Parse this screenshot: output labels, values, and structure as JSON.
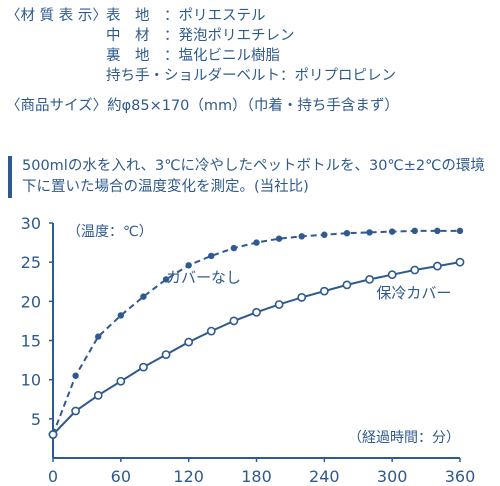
{
  "specs": {
    "label": "〈材 質 表 示〉",
    "rows": [
      {
        "key": "表　地",
        "value": "：ポリエステル"
      },
      {
        "key": "中　材",
        "value": "：発泡ポリエチレン"
      },
      {
        "key": "裏　地",
        "value": "：塩化ビニル樹脂"
      },
      {
        "key": "持ち手・ショルダーベルト",
        "value": "：ポリプロピレン"
      }
    ]
  },
  "size_line": "〈商品サイズ〉約φ85×170（mm）（巾着・持ち手含まず）",
  "test_note": "500mlの水を入れ、3℃に冷やしたペットボトルを、30℃±2℃の環境下に置いた場合の温度変化を測定。(当社比)",
  "colors": {
    "ink": "#2f5a8f"
  },
  "chart_data": {
    "type": "line",
    "ylabel": "（温度：℃）",
    "xlabel": "（経過時間：分）",
    "xlim": [
      0,
      360
    ],
    "ylim": [
      0,
      30
    ],
    "x_ticks": [
      "0",
      "60",
      "120",
      "180",
      "240",
      "300",
      "360"
    ],
    "y_ticks": [
      "5",
      "10",
      "15",
      "20",
      "25",
      "30"
    ],
    "grid": false,
    "series": [
      {
        "name": "カバーなし",
        "style": "dashed-filled-markers",
        "x": [
          0,
          20,
          40,
          60,
          80,
          100,
          120,
          140,
          160,
          180,
          200,
          220,
          240,
          260,
          280,
          300,
          320,
          340,
          360
        ],
        "values": [
          3,
          10.5,
          15.5,
          18.2,
          20.6,
          22.8,
          24.6,
          25.8,
          26.8,
          27.5,
          28.0,
          28.3,
          28.5,
          28.7,
          28.8,
          28.9,
          29.0,
          29.0,
          29.0
        ]
      },
      {
        "name": "保冷カバー",
        "style": "solid-open-markers",
        "x": [
          0,
          20,
          40,
          60,
          80,
          100,
          120,
          140,
          160,
          180,
          200,
          220,
          240,
          260,
          280,
          300,
          320,
          340,
          360
        ],
        "values": [
          3,
          6.0,
          8.0,
          9.8,
          11.6,
          13.2,
          14.8,
          16.2,
          17.5,
          18.6,
          19.6,
          20.5,
          21.3,
          22.1,
          22.8,
          23.4,
          24.0,
          24.5,
          25.0
        ]
      }
    ]
  }
}
